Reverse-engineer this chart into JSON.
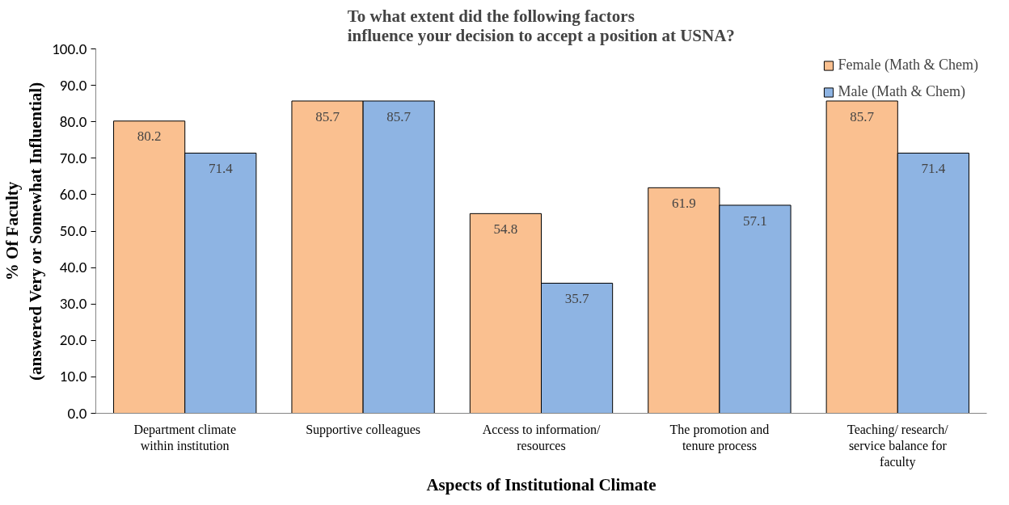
{
  "chart_data": {
    "type": "bar",
    "title": "To what extent did the following factors\ninfluence your decision to accept a position at USNA?",
    "xlabel": "Aspects of Institutional Climate",
    "ylabel": "% Of Faculty\n(answered Very or Somewhat Influential)",
    "categories": [
      "Department climate\nwithin institution",
      "Supportive colleagues",
      "Access to information/\nresources",
      "The promotion and\ntenure process",
      "Teaching/ research/\nservice balance for\nfaculty"
    ],
    "series": [
      {
        "name": "Female (Math & Chem)",
        "color": "#fac090",
        "values": [
          80.2,
          85.7,
          54.8,
          61.9,
          85.7
        ]
      },
      {
        "name": "Male (Math & Chem)",
        "color": "#8eb4e3",
        "values": [
          71.4,
          85.7,
          35.7,
          57.1,
          71.4
        ]
      }
    ],
    "ylim": [
      0,
      100
    ],
    "yticks": [
      {
        "value": 0,
        "label": "0.0"
      },
      {
        "value": 10,
        "label": "10.0"
      },
      {
        "value": 20,
        "label": "20.0"
      },
      {
        "value": 30,
        "label": "30.0"
      },
      {
        "value": 40,
        "label": "40.0"
      },
      {
        "value": 50,
        "label": "50.0"
      },
      {
        "value": 60,
        "label": "60.0"
      },
      {
        "value": 70,
        "label": "70.0"
      },
      {
        "value": 80,
        "label": "80.0"
      },
      {
        "value": 90,
        "label": "90.0"
      },
      {
        "value": 100,
        "label": "100.0"
      }
    ],
    "data_labels": true,
    "grid": false,
    "legend": "top right"
  }
}
